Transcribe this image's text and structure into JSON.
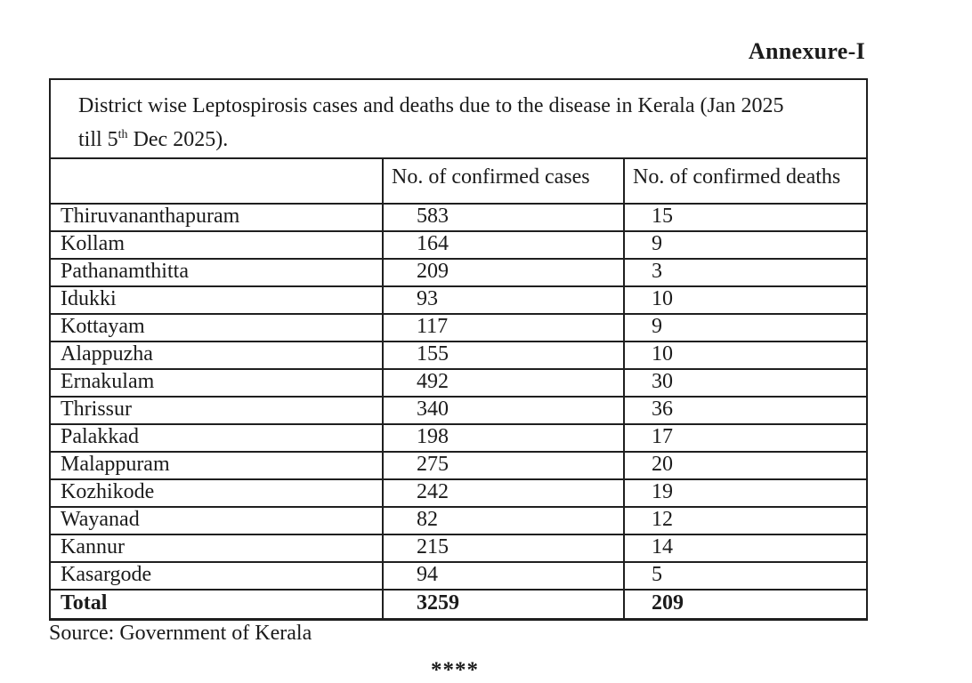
{
  "page": {
    "annexure_label": "Annexure-I",
    "source_note": "Source: Government of Kerala",
    "footer_mark": "****"
  },
  "table": {
    "title": {
      "line1": "District wise Leptospirosis cases and deaths due to the disease in Kerala (Jan 2025",
      "line2_prefix": "till 5",
      "line2_superscript": "th",
      "line2_suffix": " Dec 2025)."
    },
    "headers": {
      "district": "",
      "cases": "No. of confirmed cases",
      "deaths": "No. of confirmed deaths"
    },
    "rows": [
      {
        "district": "Thiruvananthapuram",
        "cases": "583",
        "deaths": "15"
      },
      {
        "district": "Kollam",
        "cases": "164",
        "deaths": "9"
      },
      {
        "district": "Pathanamthitta",
        "cases": "209",
        "deaths": "3"
      },
      {
        "district": "Idukki",
        "cases": "93",
        "deaths": "10"
      },
      {
        "district": "Kottayam",
        "cases": "117",
        "deaths": "9"
      },
      {
        "district": "Alappuzha",
        "cases": "155",
        "deaths": "10"
      },
      {
        "district": "Ernakulam",
        "cases": "492",
        "deaths": "30"
      },
      {
        "district": "Thrissur",
        "cases": "340",
        "deaths": "36"
      },
      {
        "district": "Palakkad",
        "cases": "198",
        "deaths": "17"
      },
      {
        "district": "Malappuram",
        "cases": "275",
        "deaths": "20"
      },
      {
        "district": "Kozhikode",
        "cases": "242",
        "deaths": "19"
      },
      {
        "district": "Wayanad",
        "cases": "82",
        "deaths": "12"
      },
      {
        "district": "Kannur",
        "cases": "215",
        "deaths": "14"
      },
      {
        "district": "Kasargode",
        "cases": "94",
        "deaths": "5"
      }
    ],
    "total_row": {
      "label": "Total",
      "cases": "3259",
      "deaths": "209"
    }
  }
}
